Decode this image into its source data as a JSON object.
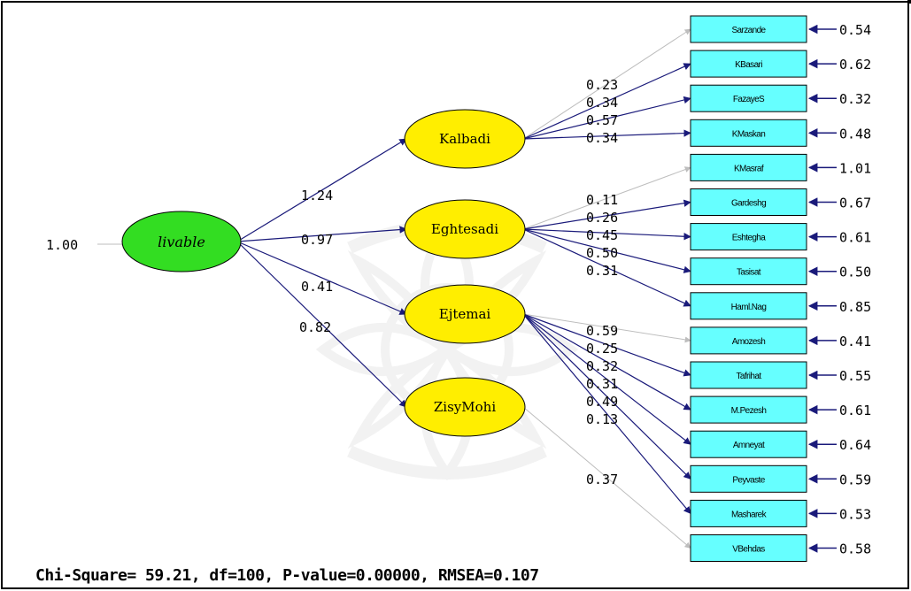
{
  "root": {
    "name": "livable",
    "variance": "1.00",
    "fill": "#33dd22"
  },
  "latents": [
    {
      "name": "Kalbadi",
      "loading": "1.24"
    },
    {
      "name": "Eghtesadi",
      "loading": "0.97"
    },
    {
      "name": "Ejtemai",
      "loading": "0.41"
    },
    {
      "name": "ZisyMohi",
      "loading": "0.82"
    }
  ],
  "indicators": [
    {
      "name": "Sarzande",
      "loading": "0.23",
      "error": "0.54",
      "parent": 0,
      "muted": true
    },
    {
      "name": "KBasari",
      "loading": "0.34",
      "error": "0.62",
      "parent": 0,
      "muted": false
    },
    {
      "name": "FazayeS",
      "loading": "0.57",
      "error": "0.32",
      "parent": 0,
      "muted": false
    },
    {
      "name": "KMaskan",
      "loading": "0.34",
      "error": "0.48",
      "parent": 0,
      "muted": false
    },
    {
      "name": "KMasraf",
      "loading": "0.11",
      "error": "1.01",
      "parent": 1,
      "muted": true
    },
    {
      "name": "Gardeshg",
      "loading": "0.26",
      "error": "0.67",
      "parent": 1,
      "muted": false
    },
    {
      "name": "Eshtegha",
      "loading": "0.45",
      "error": "0.61",
      "parent": 1,
      "muted": false
    },
    {
      "name": "Tasisat",
      "loading": "0.50",
      "error": "0.50",
      "parent": 1,
      "muted": false
    },
    {
      "name": "Haml.Nag",
      "loading": "0.31",
      "error": "0.85",
      "parent": 1,
      "muted": false
    },
    {
      "name": "Amozesh",
      "loading": "0.59",
      "error": "0.41",
      "parent": 2,
      "muted": true
    },
    {
      "name": "Tafrihat",
      "loading": "0.25",
      "error": "0.55",
      "parent": 2,
      "muted": false
    },
    {
      "name": "M.Pezesh",
      "loading": "0.32",
      "error": "0.61",
      "parent": 2,
      "muted": false
    },
    {
      "name": "Amneyat",
      "loading": "0.31",
      "error": "0.64",
      "parent": 2,
      "muted": false
    },
    {
      "name": "Peyvaste",
      "loading": "0.49",
      "error": "0.59",
      "parent": 2,
      "muted": false
    },
    {
      "name": "Masharek",
      "loading": "0.13",
      "error": "0.53",
      "parent": 2,
      "muted": false
    },
    {
      "name": "VBehdas",
      "loading": "0.37",
      "error": "0.58",
      "parent": 3,
      "muted": true
    }
  ],
  "stats": "Chi-Square= 59.21, df=100, P-value=0.00000, RMSEA=0.107",
  "colors": {
    "path": "#1a1a7a",
    "muted_path": "#bdbdbd",
    "latent_fill": "#ffee00",
    "indicator_fill": "#66ffff"
  }
}
